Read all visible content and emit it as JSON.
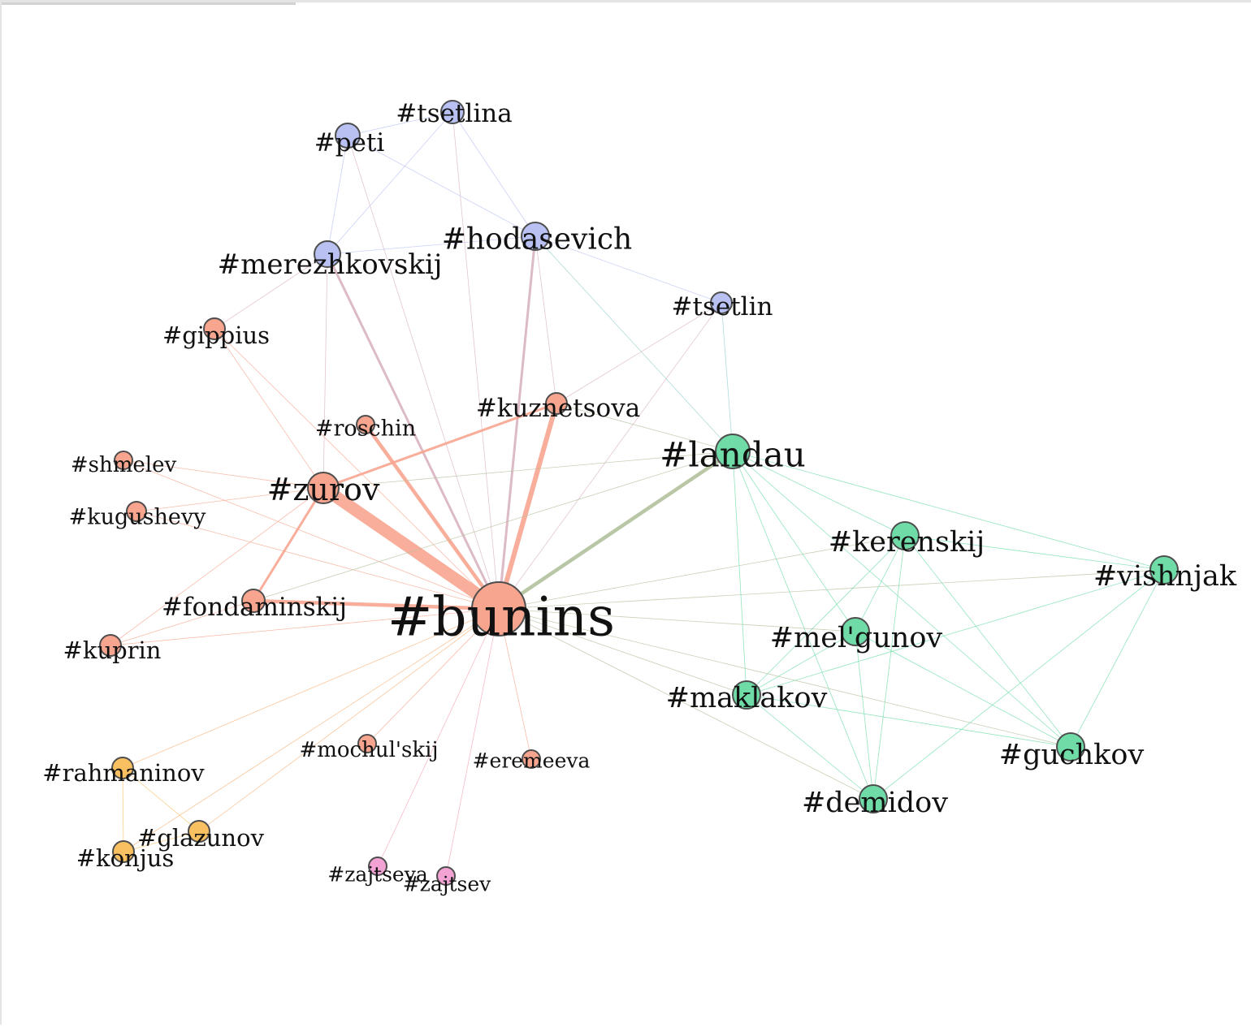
{
  "graph": {
    "colors": {
      "salmon": "#f7a58f",
      "blue": "#b8c1f2",
      "green": "#6fdca8",
      "orange": "#f8c061",
      "pink": "#f2a3d4"
    },
    "nodes": [
      {
        "id": "bunins",
        "label": "#bunins",
        "group": "salmon"
      },
      {
        "id": "zurov",
        "label": "#zurov",
        "group": "salmon"
      },
      {
        "id": "landau",
        "label": "#landau",
        "group": "green"
      },
      {
        "id": "hodasevich",
        "label": "#hodasevich",
        "group": "blue"
      },
      {
        "id": "merezhkovskij",
        "label": "#merezhkovskij",
        "group": "blue"
      },
      {
        "id": "tsetlina",
        "label": "#tsetlina",
        "group": "blue"
      },
      {
        "id": "peti",
        "label": "#peti",
        "group": "blue"
      },
      {
        "id": "tsetlin",
        "label": "#tsetlin",
        "group": "blue"
      },
      {
        "id": "gippius",
        "label": "#gippius",
        "group": "salmon"
      },
      {
        "id": "roschin",
        "label": "#roschin",
        "group": "salmon"
      },
      {
        "id": "kuznetsova",
        "label": "#kuznetsova",
        "group": "salmon"
      },
      {
        "id": "shmelev",
        "label": "#shmelev",
        "group": "salmon"
      },
      {
        "id": "kugushevy",
        "label": "#kugushevy",
        "group": "salmon"
      },
      {
        "id": "fondaminskij",
        "label": "#fondaminskij",
        "group": "salmon"
      },
      {
        "id": "kuprin",
        "label": "#kuprin",
        "group": "salmon"
      },
      {
        "id": "kerenskij",
        "label": "#kerenskij",
        "group": "green"
      },
      {
        "id": "vishnjak",
        "label": "#vishnjak",
        "group": "green"
      },
      {
        "id": "melgunov",
        "label": "#mel'gunov",
        "group": "green"
      },
      {
        "id": "maklakov",
        "label": "#maklakov",
        "group": "green"
      },
      {
        "id": "guchkov",
        "label": "#guchkov",
        "group": "green"
      },
      {
        "id": "demidov",
        "label": "#demidov",
        "group": "green"
      },
      {
        "id": "rahmaninov",
        "label": "#rahmaninov",
        "group": "orange"
      },
      {
        "id": "glazunov",
        "label": "#glazunov",
        "group": "orange"
      },
      {
        "id": "konjus",
        "label": "#konjus",
        "group": "orange"
      },
      {
        "id": "mochulskij",
        "label": "#mochul'skij",
        "group": "salmon"
      },
      {
        "id": "eremeeva",
        "label": "#eremeeva",
        "group": "salmon"
      },
      {
        "id": "zajtseva",
        "label": "#zajtseva",
        "group": "pink"
      },
      {
        "id": "zajtsev",
        "label": "#zajtsev",
        "group": "pink"
      }
    ],
    "edges": [
      {
        "source": "bunins",
        "target": "zurov",
        "weight": 10
      },
      {
        "source": "bunins",
        "target": "kuznetsova",
        "weight": 4
      },
      {
        "source": "bunins",
        "target": "roschin",
        "weight": 3
      },
      {
        "source": "bunins",
        "target": "fondaminskij",
        "weight": 3
      },
      {
        "source": "bunins",
        "target": "landau",
        "weight": 3
      },
      {
        "source": "bunins",
        "target": "merezhkovskij",
        "weight": 2
      },
      {
        "source": "bunins",
        "target": "hodasevich",
        "weight": 2
      },
      {
        "source": "bunins",
        "target": "tsetlina",
        "weight": 1
      },
      {
        "source": "bunins",
        "target": "peti",
        "weight": 1
      },
      {
        "source": "bunins",
        "target": "tsetlin",
        "weight": 1
      },
      {
        "source": "bunins",
        "target": "gippius",
        "weight": 1
      },
      {
        "source": "bunins",
        "target": "shmelev",
        "weight": 1
      },
      {
        "source": "bunins",
        "target": "kugushevy",
        "weight": 1
      },
      {
        "source": "bunins",
        "target": "kuprin",
        "weight": 1
      },
      {
        "source": "bunins",
        "target": "kerenskij",
        "weight": 1
      },
      {
        "source": "bunins",
        "target": "vishnjak",
        "weight": 1
      },
      {
        "source": "bunins",
        "target": "melgunov",
        "weight": 1
      },
      {
        "source": "bunins",
        "target": "maklakov",
        "weight": 1
      },
      {
        "source": "bunins",
        "target": "demidov",
        "weight": 1
      },
      {
        "source": "bunins",
        "target": "guchkov",
        "weight": 1
      },
      {
        "source": "bunins",
        "target": "rahmaninov",
        "weight": 1
      },
      {
        "source": "bunins",
        "target": "glazunov",
        "weight": 1
      },
      {
        "source": "bunins",
        "target": "konjus",
        "weight": 1
      },
      {
        "source": "bunins",
        "target": "mochulskij",
        "weight": 1
      },
      {
        "source": "bunins",
        "target": "eremeeva",
        "weight": 1
      },
      {
        "source": "bunins",
        "target": "zajtseva",
        "weight": 1
      },
      {
        "source": "bunins",
        "target": "zajtsev",
        "weight": 1
      },
      {
        "source": "zurov",
        "target": "kuznetsova",
        "weight": 2
      },
      {
        "source": "zurov",
        "target": "fondaminskij",
        "weight": 2
      },
      {
        "source": "zurov",
        "target": "merezhkovskij",
        "weight": 1
      },
      {
        "source": "zurov",
        "target": "gippius",
        "weight": 1
      },
      {
        "source": "zurov",
        "target": "shmelev",
        "weight": 1
      },
      {
        "source": "zurov",
        "target": "kugushevy",
        "weight": 1
      },
      {
        "source": "zurov",
        "target": "kuprin",
        "weight": 1
      },
      {
        "source": "zurov",
        "target": "landau",
        "weight": 1
      },
      {
        "source": "kuznetsova",
        "target": "tsetlin",
        "weight": 1
      },
      {
        "source": "kuznetsova",
        "target": "landau",
        "weight": 1
      },
      {
        "source": "kuznetsova",
        "target": "hodasevich",
        "weight": 1
      },
      {
        "source": "fondaminskij",
        "target": "landau",
        "weight": 1
      },
      {
        "source": "fondaminskij",
        "target": "kuprin",
        "weight": 1
      },
      {
        "source": "merezhkovskij",
        "target": "peti",
        "weight": 1
      },
      {
        "source": "merezhkovskij",
        "target": "tsetlina",
        "weight": 1
      },
      {
        "source": "merezhkovskij",
        "target": "hodasevich",
        "weight": 1
      },
      {
        "source": "merezhkovskij",
        "target": "gippius",
        "weight": 1
      },
      {
        "source": "peti",
        "target": "tsetlina",
        "weight": 1
      },
      {
        "source": "peti",
        "target": "hodasevich",
        "weight": 1
      },
      {
        "source": "tsetlina",
        "target": "hodasevich",
        "weight": 1
      },
      {
        "source": "hodasevich",
        "target": "tsetlin",
        "weight": 1
      },
      {
        "source": "hodasevich",
        "target": "landau",
        "weight": 1
      },
      {
        "source": "tsetlin",
        "target": "landau",
        "weight": 1
      },
      {
        "source": "landau",
        "target": "kerenskij",
        "weight": 1
      },
      {
        "source": "landau",
        "target": "vishnjak",
        "weight": 1
      },
      {
        "source": "landau",
        "target": "melgunov",
        "weight": 1
      },
      {
        "source": "landau",
        "target": "maklakov",
        "weight": 1
      },
      {
        "source": "landau",
        "target": "guchkov",
        "weight": 1
      },
      {
        "source": "landau",
        "target": "demidov",
        "weight": 1
      },
      {
        "source": "kerenskij",
        "target": "vishnjak",
        "weight": 1
      },
      {
        "source": "kerenskij",
        "target": "melgunov",
        "weight": 1
      },
      {
        "source": "kerenskij",
        "target": "maklakov",
        "weight": 1
      },
      {
        "source": "kerenskij",
        "target": "guchkov",
        "weight": 1
      },
      {
        "source": "kerenskij",
        "target": "demidov",
        "weight": 1
      },
      {
        "source": "vishnjak",
        "target": "maklakov",
        "weight": 1
      },
      {
        "source": "vishnjak",
        "target": "guchkov",
        "weight": 1
      },
      {
        "source": "vishnjak",
        "target": "demidov",
        "weight": 1
      },
      {
        "source": "melgunov",
        "target": "maklakov",
        "weight": 1
      },
      {
        "source": "melgunov",
        "target": "guchkov",
        "weight": 1
      },
      {
        "source": "melgunov",
        "target": "demidov",
        "weight": 1
      },
      {
        "source": "maklakov",
        "target": "guchkov",
        "weight": 1
      },
      {
        "source": "maklakov",
        "target": "demidov",
        "weight": 1
      },
      {
        "source": "rahmaninov",
        "target": "glazunov",
        "weight": 1
      },
      {
        "source": "rahmaninov",
        "target": "konjus",
        "weight": 1
      },
      {
        "source": "glazunov",
        "target": "konjus",
        "weight": 1
      }
    ]
  }
}
